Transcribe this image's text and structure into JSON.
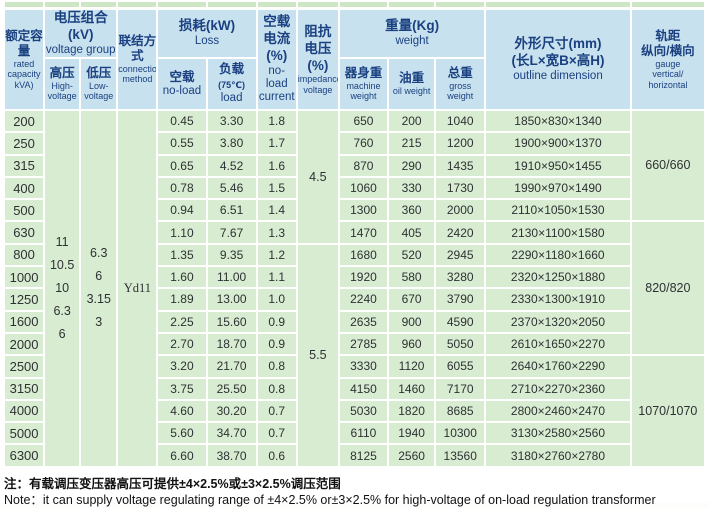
{
  "colors": {
    "header_bg": "#c8e1ef",
    "cell_bg": "#d8ecd1",
    "strip_bg": "#cde7c6",
    "header_text": "#1a4080",
    "cell_text": "#2e3134",
    "grid": "#ffffff"
  },
  "header": {
    "capacity_zh": "额定容量",
    "capacity_en": "rated capacity kVA)",
    "voltage_zh": "电压组合(kV)",
    "voltage_en": "voltage group",
    "hv_zh": "高压",
    "hv_en": "High-voltage",
    "lv_zh": "低压",
    "lv_en": "Low-voltage",
    "conn_zh": "联结方式",
    "conn_en": "connection method",
    "loss_zh": "损耗(kW)",
    "loss_en": "Loss",
    "noload_zh": "空载",
    "noload_en": "no-load",
    "load_zh": "负载",
    "load_sup": "(75℃)",
    "load_en": "load",
    "current_zh": "空载电流(%)",
    "current_en": "no-load current",
    "impedance_zh": "阻抗电压(%)",
    "impedance_en": "impedance voltage",
    "weight_zh": "重量(Kg)",
    "weight_en": "weight",
    "machine_zh": "器身重",
    "machine_en": "machine weight",
    "oil_zh": "油重",
    "oil_en": "oil weight",
    "gross_zh": "总重",
    "gross_en": "gross weight",
    "outline_zh1": "外形尺寸(mm)",
    "outline_zh2": "(长L×宽B×高H)",
    "outline_en": "outline dimension",
    "gauge_zh1": "轨距",
    "gauge_zh2": "纵向/横向",
    "gauge_en1": "gauge",
    "gauge_en2": "vertical/",
    "gauge_en3": "horizontal"
  },
  "table": {
    "merged": {
      "high_voltage": [
        "11",
        "10.5",
        "10",
        "6.3",
        "6"
      ],
      "low_voltage": [
        "6.3",
        "6",
        "3.15",
        "3"
      ],
      "connection": "Yd11",
      "impedance": [
        {
          "value": "4.5",
          "at": 0,
          "span": 6
        },
        {
          "value": "5.5",
          "at": 6,
          "span": 10
        }
      ],
      "gauge": [
        {
          "value": "660/660",
          "at": 0,
          "span": 5
        },
        {
          "value": "820/820",
          "at": 5,
          "span": 6
        },
        {
          "value": "1070/1070",
          "at": 11,
          "span": 5
        }
      ]
    },
    "rows": [
      {
        "kva": "200",
        "no_load_loss": "0.45",
        "load_loss": "3.30",
        "no_load_current": "1.8",
        "machine": "650",
        "oil": "200",
        "gross": "1040",
        "outline": "1850×830×1340"
      },
      {
        "kva": "250",
        "no_load_loss": "0.55",
        "load_loss": "3.80",
        "no_load_current": "1.7",
        "machine": "760",
        "oil": "215",
        "gross": "1200",
        "outline": "1900×900×1370"
      },
      {
        "kva": "315",
        "no_load_loss": "0.65",
        "load_loss": "4.52",
        "no_load_current": "1.6",
        "machine": "870",
        "oil": "290",
        "gross": "1435",
        "outline": "1910×950×1455"
      },
      {
        "kva": "400",
        "no_load_loss": "0.78",
        "load_loss": "5.46",
        "no_load_current": "1.5",
        "machine": "1060",
        "oil": "330",
        "gross": "1730",
        "outline": "1990×970×1490"
      },
      {
        "kva": "500",
        "no_load_loss": "0.94",
        "load_loss": "6.51",
        "no_load_current": "1.4",
        "machine": "1300",
        "oil": "360",
        "gross": "2000",
        "outline": "2110×1050×1530"
      },
      {
        "kva": "630",
        "no_load_loss": "1.10",
        "load_loss": "7.67",
        "no_load_current": "1.3",
        "machine": "1470",
        "oil": "405",
        "gross": "2420",
        "outline": "2130×1100×1580"
      },
      {
        "kva": "800",
        "no_load_loss": "1.35",
        "load_loss": "9.35",
        "no_load_current": "1.2",
        "machine": "1680",
        "oil": "520",
        "gross": "2945",
        "outline": "2290×1180×1660"
      },
      {
        "kva": "1000",
        "no_load_loss": "1.60",
        "load_loss": "11.00",
        "no_load_current": "1.1",
        "machine": "1920",
        "oil": "580",
        "gross": "3280",
        "outline": "2320×1250×1880"
      },
      {
        "kva": "1250",
        "no_load_loss": "1.89",
        "load_loss": "13.00",
        "no_load_current": "1.0",
        "machine": "2240",
        "oil": "670",
        "gross": "3790",
        "outline": "2330×1300×1910"
      },
      {
        "kva": "1600",
        "no_load_loss": "2.25",
        "load_loss": "15.60",
        "no_load_current": "0.9",
        "machine": "2635",
        "oil": "900",
        "gross": "4590",
        "outline": "2370×1320×2050"
      },
      {
        "kva": "2000",
        "no_load_loss": "2.70",
        "load_loss": "18.70",
        "no_load_current": "0.9",
        "machine": "2785",
        "oil": "960",
        "gross": "5050",
        "outline": "2610×1650×2270"
      },
      {
        "kva": "2500",
        "no_load_loss": "3.20",
        "load_loss": "21.70",
        "no_load_current": "0.8",
        "machine": "3330",
        "oil": "1120",
        "gross": "6055",
        "outline": "2640×1760×2290"
      },
      {
        "kva": "3150",
        "no_load_loss": "3.75",
        "load_loss": "25.50",
        "no_load_current": "0.8",
        "machine": "4150",
        "oil": "1460",
        "gross": "7170",
        "outline": "2710×2270×2360"
      },
      {
        "kva": "4000",
        "no_load_loss": "4.60",
        "load_loss": "30.20",
        "no_load_current": "0.7",
        "machine": "5030",
        "oil": "1820",
        "gross": "8685",
        "outline": "2800×2460×2470"
      },
      {
        "kva": "5000",
        "no_load_loss": "5.60",
        "load_loss": "34.70",
        "no_load_current": "0.7",
        "machine": "6110",
        "oil": "1940",
        "gross": "10300",
        "outline": "3130×2580×2560"
      },
      {
        "kva": "6300",
        "no_load_loss": "6.60",
        "load_loss": "38.70",
        "no_load_current": "0.6",
        "machine": "8125",
        "oil": "2560",
        "gross": "13560",
        "outline": "3180×2760×2780"
      }
    ]
  },
  "note": {
    "line1": "注：有载调压变压器高压可提供±4×2.5%或±3×2.5%调压范围",
    "line2": "Note：it can supply voltage regulating range of ±4×2.5% or±3×2.5% for high-voltage of on-load regulation transformer"
  }
}
